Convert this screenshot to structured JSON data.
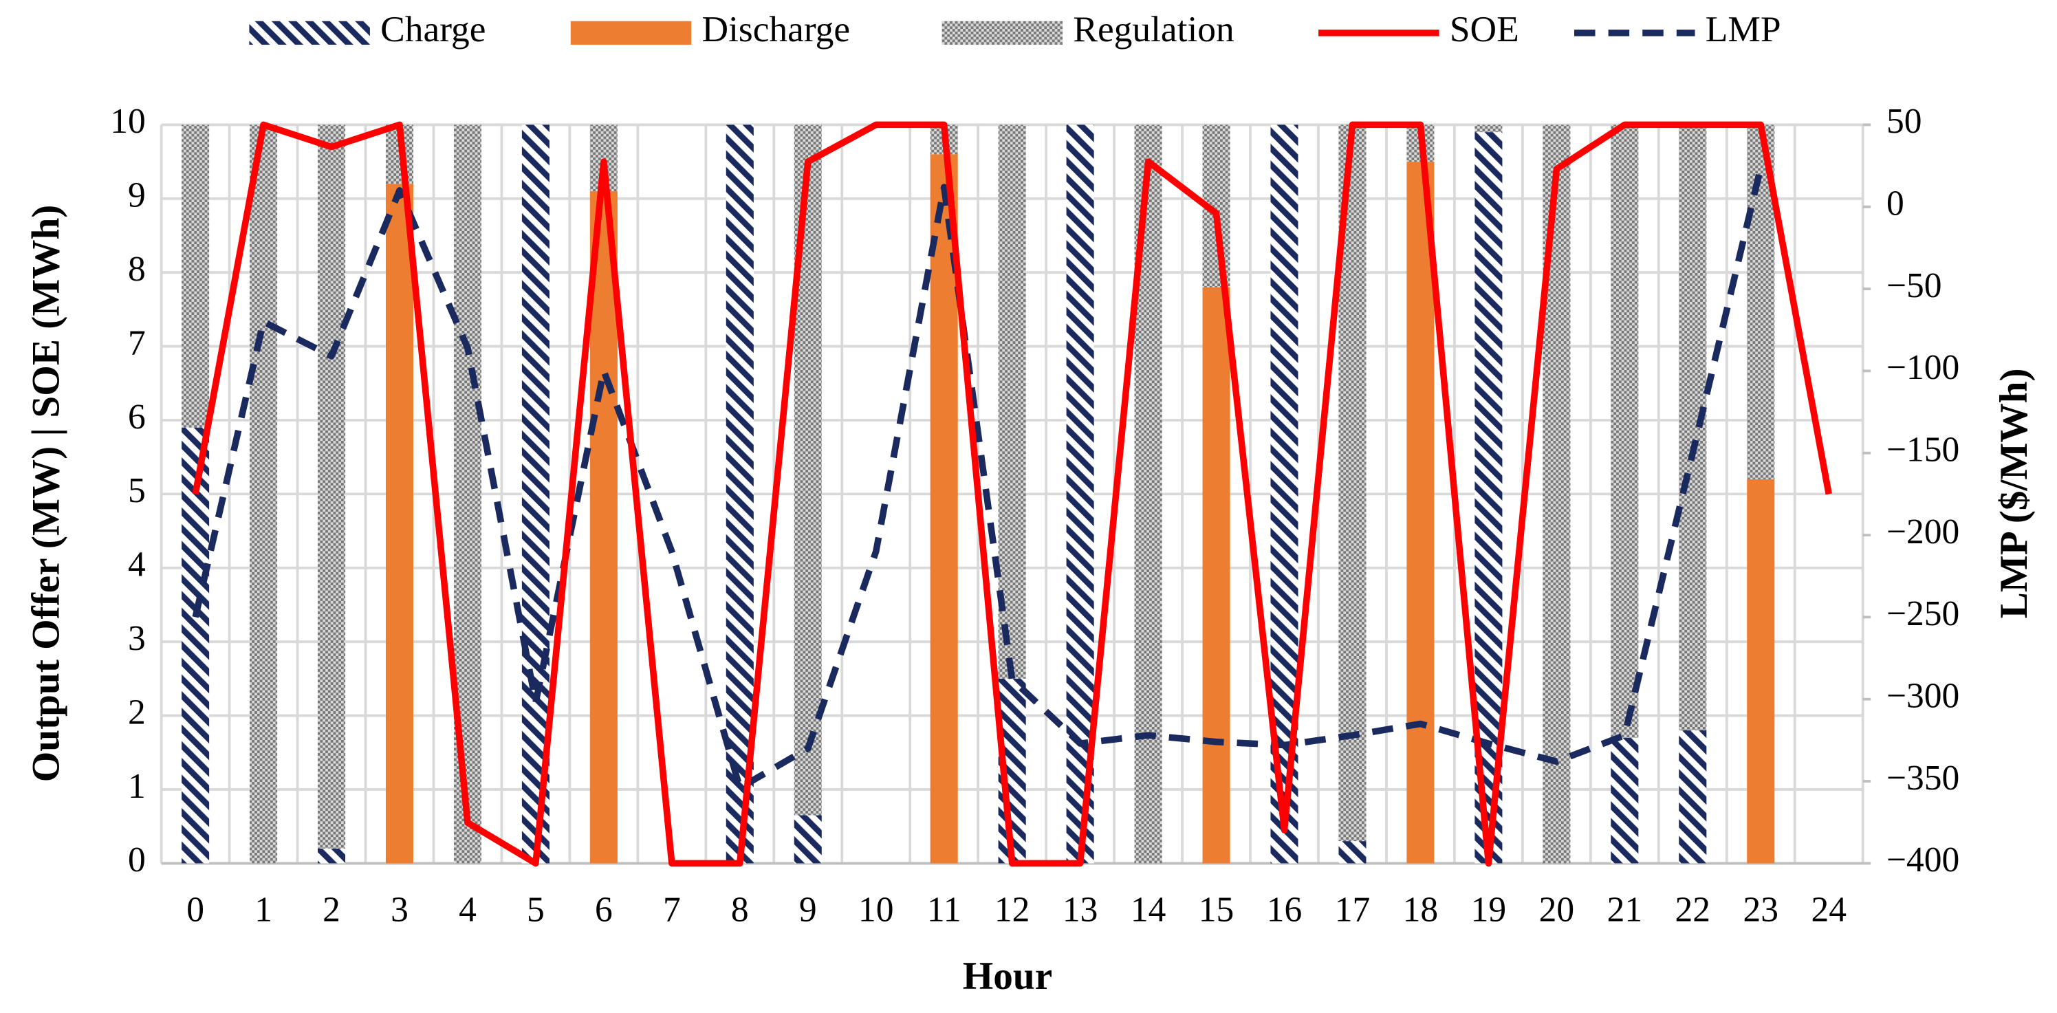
{
  "chart_data": {
    "type": "stacked-bar-line",
    "xlabel": "Hour",
    "ylabel": "Output Offer (MW) | SOE (MWh)",
    "y2label": "LMP ($/MWh)",
    "categories": [
      0,
      1,
      2,
      3,
      4,
      5,
      6,
      7,
      8,
      9,
      10,
      11,
      12,
      13,
      14,
      15,
      16,
      17,
      18,
      19,
      20,
      21,
      22,
      23,
      24
    ],
    "series": [
      {
        "name": "Charge",
        "kind": "bar",
        "color": "#1b2a5e",
        "values": [
          5.9,
          0,
          0.2,
          0,
          0,
          10,
          0,
          0,
          10,
          0.65,
          0,
          0,
          2.5,
          10,
          0,
          0,
          10,
          0.3,
          0,
          9.9,
          0,
          1.7,
          1.8,
          0,
          null
        ]
      },
      {
        "name": "Discharge",
        "kind": "bar",
        "color": "#ed7d31",
        "values": [
          0,
          0,
          0,
          9.2,
          0,
          0,
          9.1,
          0,
          0,
          0,
          0,
          9.6,
          0,
          0,
          0,
          7.8,
          0,
          0,
          9.5,
          0,
          0,
          0,
          0,
          5.2,
          null
        ]
      },
      {
        "name": "Regulation",
        "kind": "bar",
        "color": "#8c8c8c",
        "values": [
          4.1,
          10,
          9.8,
          0.8,
          10,
          0,
          0.9,
          0,
          0,
          9.35,
          0,
          0.4,
          7.5,
          0,
          10,
          2.2,
          0,
          9.7,
          0.5,
          0.1,
          10,
          8.3,
          8.2,
          4.8,
          null
        ]
      },
      {
        "name": "SOE",
        "kind": "line",
        "color": "#ff0000",
        "values": [
          5,
          10,
          9.7,
          10,
          0.55,
          0,
          9.5,
          0,
          0,
          9.5,
          10,
          10,
          0,
          0,
          9.5,
          8.8,
          0.45,
          10,
          10,
          0,
          9.4,
          10,
          10,
          10,
          5
        ]
      },
      {
        "name": "LMP",
        "kind": "dashed-line",
        "axis": "y2",
        "color": "#1b2a5e",
        "values": [
          -250,
          -70,
          -91,
          10,
          -86,
          -302,
          -100,
          -210,
          -354,
          -330,
          -210,
          12,
          -288,
          -327,
          -322,
          -326,
          -328,
          -322,
          -315,
          -327,
          -338,
          -322,
          -150,
          24,
          null
        ]
      }
    ],
    "ylim": [
      0,
      10
    ],
    "yticks": [
      0,
      1,
      2,
      3,
      4,
      5,
      6,
      7,
      8,
      9,
      10
    ],
    "y2lim": [
      -400,
      50
    ],
    "y2ticks": [
      {
        "value": -400,
        "label": "−400"
      },
      {
        "value": -350,
        "label": "−350"
      },
      {
        "value": -300,
        "label": "−300"
      },
      {
        "value": -250,
        "label": "−250"
      },
      {
        "value": -200,
        "label": "−200"
      },
      {
        "value": -150,
        "label": "−150"
      },
      {
        "value": -100,
        "label": "−100"
      },
      {
        "value": -50,
        "label": "−50"
      },
      0,
      50
    ],
    "grid": true,
    "legend": "top"
  }
}
